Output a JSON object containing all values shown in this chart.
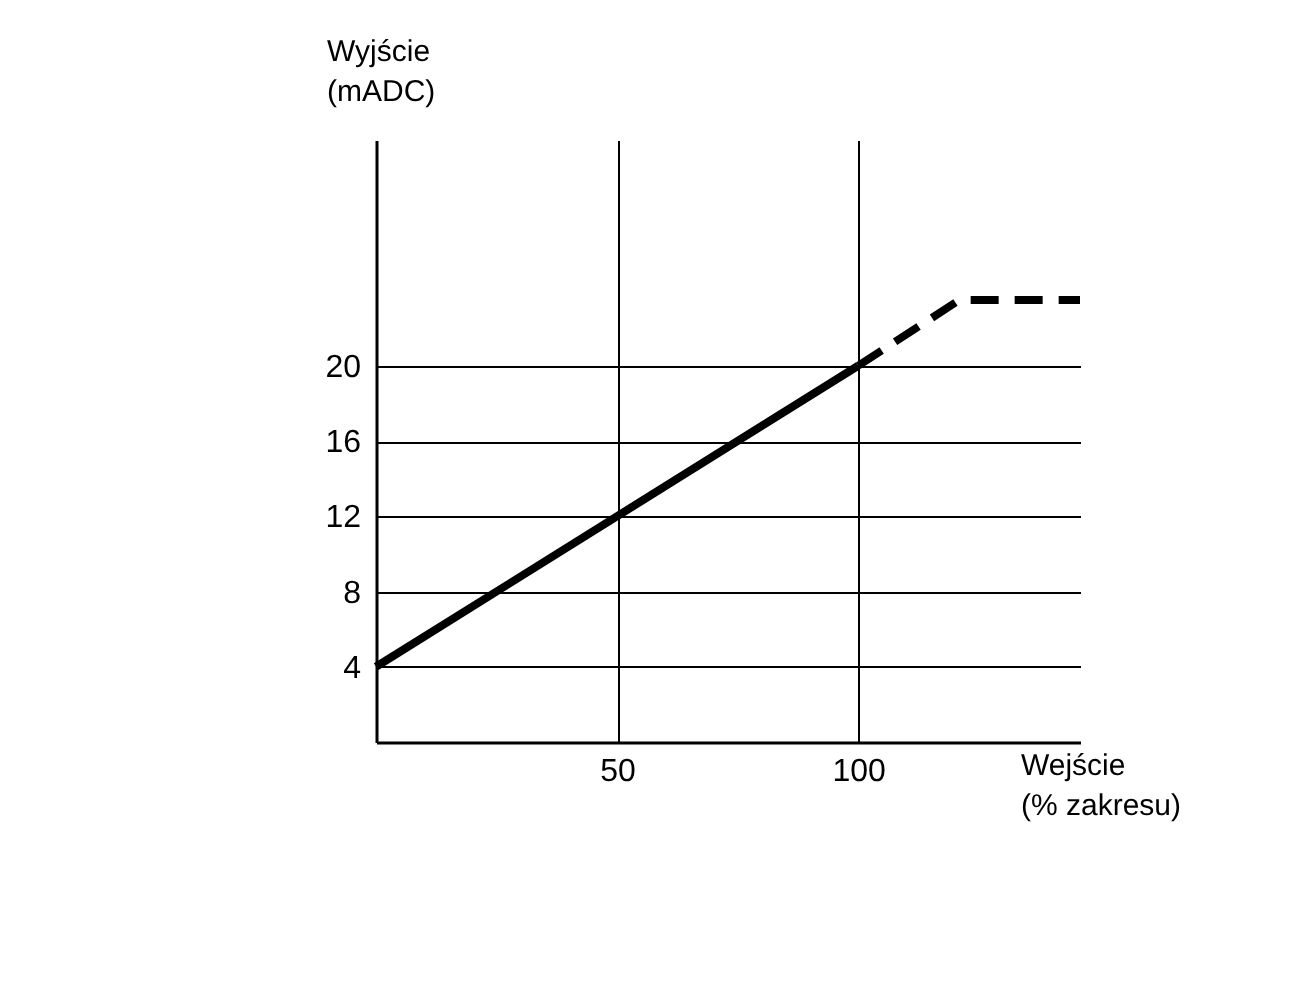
{
  "chart_data": {
    "type": "line",
    "xlabel": "Wejście\n(% zakresu)",
    "ylabel": "Wyjście\n(mADC)",
    "xlim": [
      0,
      146
    ],
    "ylim": [
      0,
      32
    ],
    "xticks": [
      50,
      100
    ],
    "yticks": [
      4,
      8,
      12,
      16,
      20
    ],
    "grid": true,
    "marker": "none",
    "series": [
      {
        "color": "#000000",
        "line_style": "solid",
        "x": [
          0,
          100
        ],
        "values": [
          4,
          20
        ]
      },
      {
        "color": "#000000",
        "line_style": "dashed",
        "x": [
          100,
          121,
          146
        ],
        "values": [
          20,
          23.5,
          23.5
        ]
      }
    ]
  }
}
